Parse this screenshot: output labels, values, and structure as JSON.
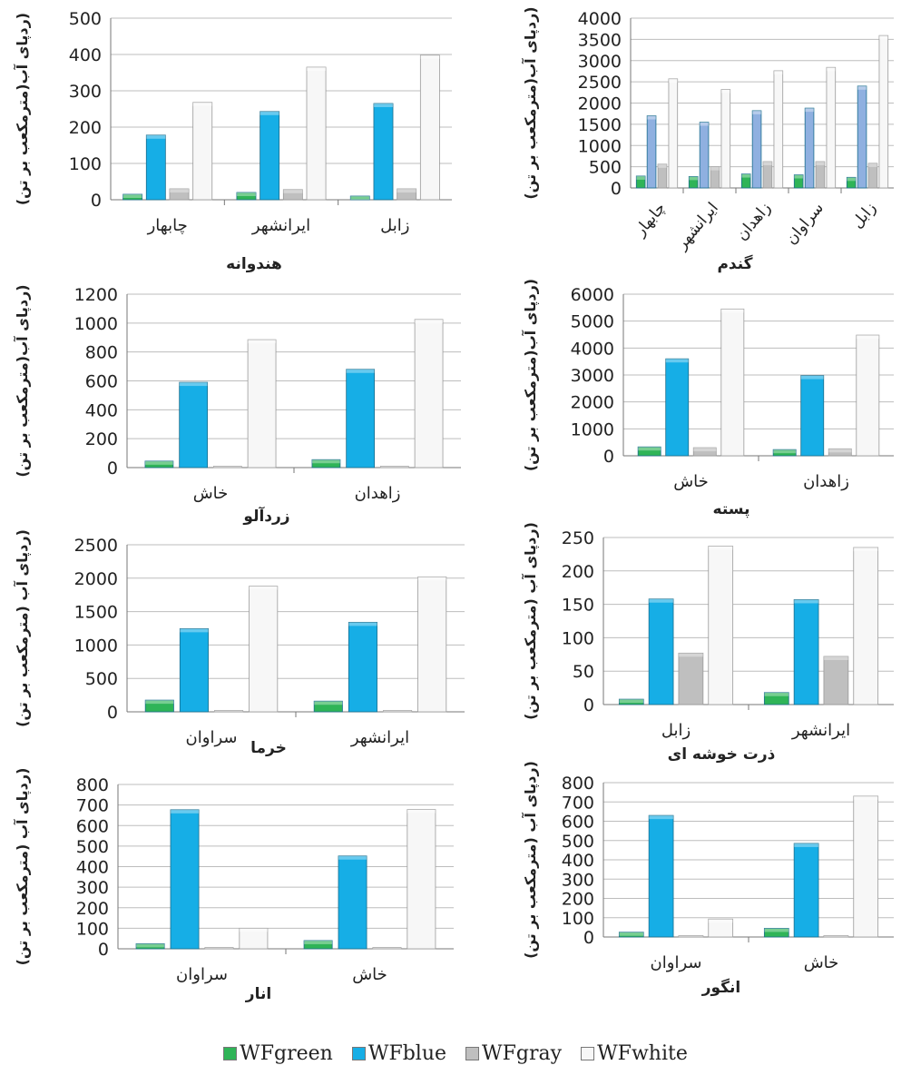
{
  "colors": {
    "WFgreen": "#2fb457",
    "WFblue": "#16aee6",
    "WFblue_wheat": "#8fb0e0",
    "WFgray": "#bfbfbf",
    "WFwhite": "#f7f7f7"
  },
  "legend": [
    "WFgreen",
    "WFblue",
    "WFgray",
    "WFwhite"
  ],
  "chart_data": [
    {
      "id": "watermelon",
      "type": "bar",
      "title": "هندوانه",
      "ylabel": "(ردپای آب(مترمکعب بر تن)",
      "ylim": [
        0,
        500
      ],
      "yticks": [
        0,
        100,
        200,
        300,
        400,
        500
      ],
      "categories": [
        "چابهار",
        "ایرانشهر",
        "زابل"
      ],
      "series": [
        {
          "name": "WFgreen",
          "values": [
            15,
            20,
            10
          ]
        },
        {
          "name": "WFblue",
          "values": [
            178,
            243,
            265
          ]
        },
        {
          "name": "WFgray",
          "values": [
            30,
            28,
            30
          ]
        },
        {
          "name": "WFwhite",
          "values": [
            268,
            365,
            398
          ]
        }
      ]
    },
    {
      "id": "wheat",
      "type": "bar",
      "title": "گندم",
      "ylabel": "(ردپای آب(مترمکعب بر تن)",
      "ylim": [
        0,
        4000
      ],
      "yticks": [
        0,
        500,
        1000,
        1500,
        2000,
        2500,
        3000,
        3500,
        4000
      ],
      "categories": [
        "چابهار",
        "ایرانشهر",
        "زاهدان",
        "سراوان",
        "زابل"
      ],
      "series": [
        {
          "name": "WFgreen",
          "values": [
            280,
            270,
            330,
            310,
            250
          ]
        },
        {
          "name": "WFblue",
          "values": [
            1700,
            1550,
            1820,
            1880,
            2400
          ]
        },
        {
          "name": "WFgray",
          "values": [
            560,
            500,
            620,
            620,
            580
          ]
        },
        {
          "name": "WFwhite",
          "values": [
            2570,
            2320,
            2760,
            2840,
            3590
          ]
        }
      ]
    },
    {
      "id": "apricot",
      "type": "bar",
      "title": "زردآلو",
      "ylabel": "(ردپای آب(مترمکعب بر تن)",
      "ylim": [
        0,
        1200
      ],
      "yticks": [
        0,
        200,
        400,
        600,
        800,
        1000,
        1200
      ],
      "categories": [
        "خاش",
        "زاهدان"
      ],
      "series": [
        {
          "name": "WFgreen",
          "values": [
            45,
            55
          ]
        },
        {
          "name": "WFblue",
          "values": [
            590,
            680
          ]
        },
        {
          "name": "WFgray",
          "values": [
            5,
            5
          ]
        },
        {
          "name": "WFwhite",
          "values": [
            885,
            1025
          ]
        }
      ]
    },
    {
      "id": "pistachio",
      "type": "bar",
      "title": "پسته",
      "ylabel": "(ردپای آب(مترمکعب بر تن)",
      "ylim": [
        0,
        6000
      ],
      "yticks": [
        0,
        1000,
        2000,
        3000,
        4000,
        5000,
        6000
      ],
      "categories": [
        "خاش",
        "زاهدان"
      ],
      "series": [
        {
          "name": "WFgreen",
          "values": [
            330,
            230
          ]
        },
        {
          "name": "WFblue",
          "values": [
            3600,
            2980
          ]
        },
        {
          "name": "WFgray",
          "values": [
            300,
            260
          ]
        },
        {
          "name": "WFwhite",
          "values": [
            5450,
            4480
          ]
        }
      ]
    },
    {
      "id": "date_palm",
      "type": "bar",
      "title": "خرما",
      "ylabel": "(ردپای آب (مترمکعب بر تن)",
      "ylim": [
        0,
        2500
      ],
      "yticks": [
        0,
        500,
        1000,
        1500,
        2000,
        2500
      ],
      "categories": [
        "سراوان",
        "ایرانشهر"
      ],
      "series": [
        {
          "name": "WFgreen",
          "values": [
            175,
            160
          ]
        },
        {
          "name": "WFblue",
          "values": [
            1245,
            1340
          ]
        },
        {
          "name": "WFgray",
          "values": [
            10,
            10
          ]
        },
        {
          "name": "WFwhite",
          "values": [
            1880,
            2020
          ]
        }
      ]
    },
    {
      "id": "sorghum",
      "type": "bar",
      "title": "ذرت خوشه ای",
      "ylabel": "(ردپای آب (مترمکعب بر تن)",
      "ylim": [
        0,
        250
      ],
      "yticks": [
        0,
        50,
        100,
        150,
        200,
        250
      ],
      "categories": [
        "زابل",
        "ایرانشهر"
      ],
      "series": [
        {
          "name": "WFgreen",
          "values": [
            8,
            18
          ]
        },
        {
          "name": "WFblue",
          "values": [
            158,
            157
          ]
        },
        {
          "name": "WFgray",
          "values": [
            77,
            72
          ]
        },
        {
          "name": "WFwhite",
          "values": [
            237,
            235
          ]
        }
      ]
    },
    {
      "id": "pomegranate",
      "type": "bar",
      "title": "انار",
      "ylabel": "(ردپای آب (مترمکعب بر تن)",
      "ylim": [
        0,
        800
      ],
      "yticks": [
        0,
        100,
        200,
        300,
        400,
        500,
        600,
        700,
        800
      ],
      "categories": [
        "سراوان",
        "خاش"
      ],
      "series": [
        {
          "name": "WFgreen",
          "values": [
            25,
            40
          ]
        },
        {
          "name": "WFblue",
          "values": [
            677,
            452
          ]
        },
        {
          "name": "WFgray",
          "values": [
            5,
            5
          ]
        },
        {
          "name": "WFwhite",
          "values": [
            100,
            678
          ]
        }
      ]
    },
    {
      "id": "grape",
      "type": "bar",
      "title": "انگور",
      "ylabel": "(ردپای آب (مترمکعب بر تن)",
      "ylim": [
        0,
        800
      ],
      "yticks": [
        0,
        100,
        200,
        300,
        400,
        500,
        600,
        700,
        800
      ],
      "categories": [
        "سراوان",
        "خاش"
      ],
      "series": [
        {
          "name": "WFgreen",
          "values": [
            25,
            45
          ]
        },
        {
          "name": "WFblue",
          "values": [
            630,
            485
          ]
        },
        {
          "name": "WFgray",
          "values": [
            5,
            5
          ]
        },
        {
          "name": "WFwhite",
          "values": [
            93,
            730
          ]
        }
      ]
    }
  ]
}
